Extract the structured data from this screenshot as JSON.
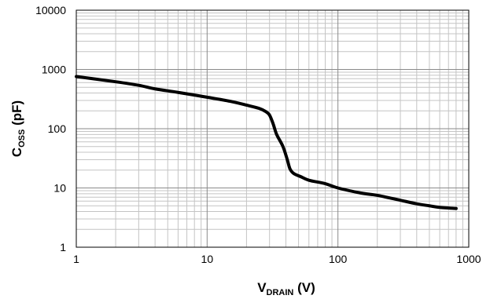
{
  "chart_data": {
    "type": "line",
    "xscale": "log",
    "yscale": "log",
    "xlim": [
      1,
      1000
    ],
    "ylim": [
      1,
      10000
    ],
    "grid": true,
    "legend": "none",
    "xlabel": {
      "main": "V",
      "sub": "DRAIN",
      "unit": " (V)"
    },
    "ylabel": {
      "main": "C",
      "sub": "OSS",
      "unit": " (pF)"
    },
    "xticks": [
      "1",
      "10",
      "100",
      "1000"
    ],
    "yticks": [
      "1",
      "10",
      "100",
      "1000",
      "10000"
    ],
    "series": [
      {
        "color": "#000000",
        "points": [
          [
            1,
            760
          ],
          [
            2,
            620
          ],
          [
            3,
            540
          ],
          [
            4,
            470
          ],
          [
            6,
            410
          ],
          [
            10,
            340
          ],
          [
            15,
            290
          ],
          [
            20,
            250
          ],
          [
            25,
            220
          ],
          [
            28,
            195
          ],
          [
            30,
            170
          ],
          [
            32,
            120
          ],
          [
            34,
            80
          ],
          [
            38,
            50
          ],
          [
            41,
            30
          ],
          [
            43,
            21
          ],
          [
            46,
            17.5
          ],
          [
            52,
            15.5
          ],
          [
            60,
            13.5
          ],
          [
            80,
            11.8
          ],
          [
            100,
            10
          ],
          [
            150,
            8.2
          ],
          [
            200,
            7.5
          ],
          [
            300,
            6.2
          ],
          [
            400,
            5.4
          ],
          [
            500,
            5.0
          ],
          [
            600,
            4.7
          ],
          [
            800,
            4.5
          ]
        ]
      }
    ]
  }
}
